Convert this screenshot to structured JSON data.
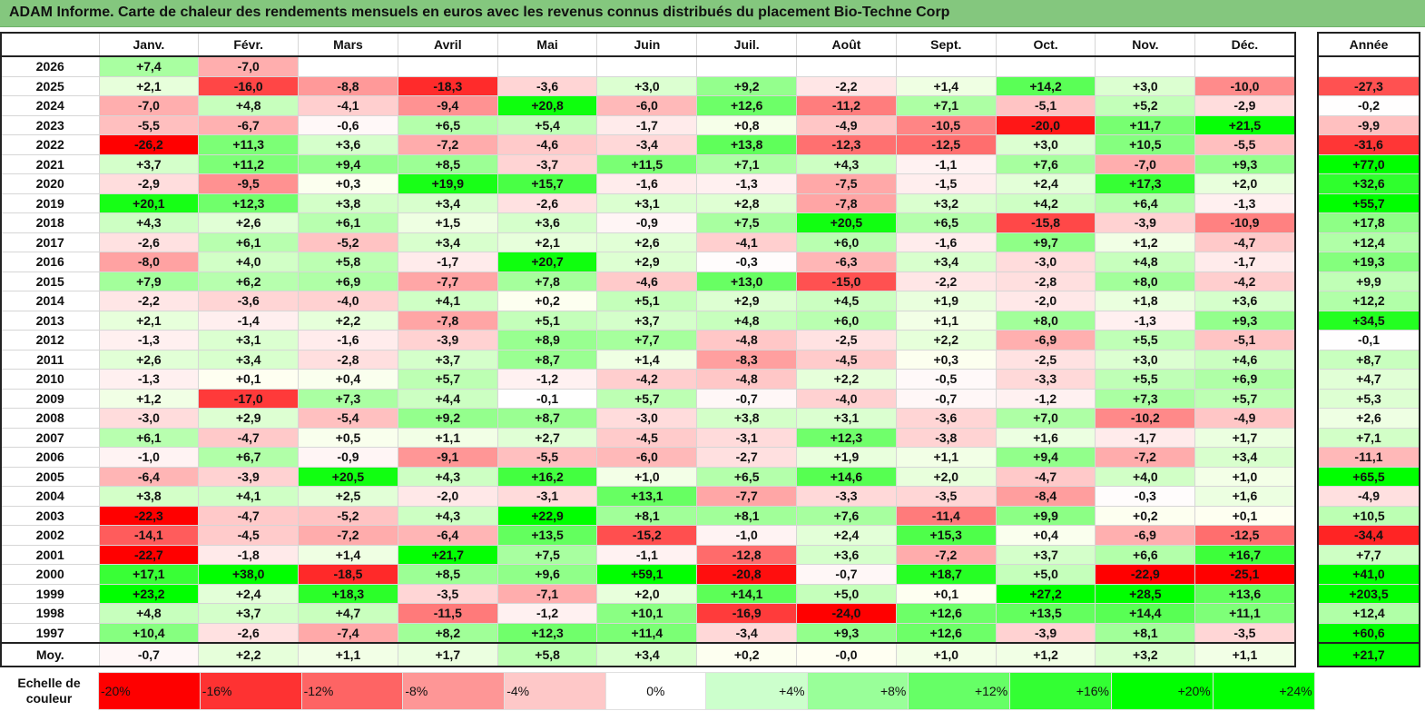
{
  "title": "ADAM Informe. Carte de chaleur des rendements mensuels en euros avec les revenus connus distribués du placement Bio-Techne Corp",
  "chart_data": {
    "type": "heatmap",
    "title": "ADAM Informe. Carte de chaleur des rendements mensuels en euros avec les revenus connus distribués du placement Bio-Techne Corp",
    "months": [
      "Janv.",
      "Févr.",
      "Mars",
      "Avril",
      "Mai",
      "Juin",
      "Juil.",
      "Août",
      "Sept.",
      "Oct.",
      "Nov.",
      "Déc."
    ],
    "year_header": "Année",
    "rows": [
      {
        "year": "2026",
        "values": [
          "+7,4",
          "-7,0",
          "",
          "",
          "",
          "",
          "",
          "",
          "",
          "",
          "",
          ""
        ],
        "annual": ""
      },
      {
        "year": "2025",
        "values": [
          "+2,1",
          "-16,0",
          "-8,8",
          "-18,3",
          "-3,6",
          "+3,0",
          "+9,2",
          "-2,2",
          "+1,4",
          "+14,2",
          "+3,0",
          "-10,0"
        ],
        "annual": "-27,3"
      },
      {
        "year": "2024",
        "values": [
          "-7,0",
          "+4,8",
          "-4,1",
          "-9,4",
          "+20,8",
          "-6,0",
          "+12,6",
          "-11,2",
          "+7,1",
          "-5,1",
          "+5,2",
          "-2,9"
        ],
        "annual": "-0,2"
      },
      {
        "year": "2023",
        "values": [
          "-5,5",
          "-6,7",
          "-0,6",
          "+6,5",
          "+5,4",
          "-1,7",
          "+0,8",
          "-4,9",
          "-10,5",
          "-20,0",
          "+11,7",
          "+21,5"
        ],
        "annual": "-9,9"
      },
      {
        "year": "2022",
        "values": [
          "-26,2",
          "+11,3",
          "+3,6",
          "-7,2",
          "-4,6",
          "-3,4",
          "+13,8",
          "-12,3",
          "-12,5",
          "+3,0",
          "+10,5",
          "-5,5"
        ],
        "annual": "-31,6"
      },
      {
        "year": "2021",
        "values": [
          "+3,7",
          "+11,2",
          "+9,4",
          "+8,5",
          "-3,7",
          "+11,5",
          "+7,1",
          "+4,3",
          "-1,1",
          "+7,6",
          "-7,0",
          "+9,3"
        ],
        "annual": "+77,0"
      },
      {
        "year": "2020",
        "values": [
          "-2,9",
          "-9,5",
          "+0,3",
          "+19,9",
          "+15,7",
          "-1,6",
          "-1,3",
          "-7,5",
          "-1,5",
          "+2,4",
          "+17,3",
          "+2,0"
        ],
        "annual": "+32,6"
      },
      {
        "year": "2019",
        "values": [
          "+20,1",
          "+12,3",
          "+3,8",
          "+3,4",
          "-2,6",
          "+3,1",
          "+2,8",
          "-7,8",
          "+3,2",
          "+4,2",
          "+6,4",
          "-1,3"
        ],
        "annual": "+55,7"
      },
      {
        "year": "2018",
        "values": [
          "+4,3",
          "+2,6",
          "+6,1",
          "+1,5",
          "+3,6",
          "-0,9",
          "+7,5",
          "+20,5",
          "+6,5",
          "-15,8",
          "-3,9",
          "-10,9"
        ],
        "annual": "+17,8"
      },
      {
        "year": "2017",
        "values": [
          "-2,6",
          "+6,1",
          "-5,2",
          "+3,4",
          "+2,1",
          "+2,6",
          "-4,1",
          "+6,0",
          "-1,6",
          "+9,7",
          "+1,2",
          "-4,7"
        ],
        "annual": "+12,4"
      },
      {
        "year": "2016",
        "values": [
          "-8,0",
          "+4,0",
          "+5,8",
          "-1,7",
          "+20,7",
          "+2,9",
          "-0,3",
          "-6,3",
          "+3,4",
          "-3,0",
          "+4,8",
          "-1,7"
        ],
        "annual": "+19,3"
      },
      {
        "year": "2015",
        "values": [
          "+7,9",
          "+6,2",
          "+6,9",
          "-7,7",
          "+7,8",
          "-4,6",
          "+13,0",
          "-15,0",
          "-2,2",
          "-2,8",
          "+8,0",
          "-4,2"
        ],
        "annual": "+9,9"
      },
      {
        "year": "2014",
        "values": [
          "-2,2",
          "-3,6",
          "-4,0",
          "+4,1",
          "+0,2",
          "+5,1",
          "+2,9",
          "+4,5",
          "+1,9",
          "-2,0",
          "+1,8",
          "+3,6"
        ],
        "annual": "+12,2"
      },
      {
        "year": "2013",
        "values": [
          "+2,1",
          "-1,4",
          "+2,2",
          "-7,8",
          "+5,1",
          "+3,7",
          "+4,8",
          "+6,0",
          "+1,1",
          "+8,0",
          "-1,3",
          "+9,3"
        ],
        "annual": "+34,5"
      },
      {
        "year": "2012",
        "values": [
          "-1,3",
          "+3,1",
          "-1,6",
          "-3,9",
          "+8,9",
          "+7,7",
          "-4,8",
          "-2,5",
          "+2,2",
          "-6,9",
          "+5,5",
          "-5,1"
        ],
        "annual": "-0,1"
      },
      {
        "year": "2011",
        "values": [
          "+2,6",
          "+3,4",
          "-2,8",
          "+3,7",
          "+8,7",
          "+1,4",
          "-8,3",
          "-4,5",
          "+0,3",
          "-2,5",
          "+3,0",
          "+4,6"
        ],
        "annual": "+8,7"
      },
      {
        "year": "2010",
        "values": [
          "-1,3",
          "+0,1",
          "+0,4",
          "+5,7",
          "-1,2",
          "-4,2",
          "-4,8",
          "+2,2",
          "-0,5",
          "-3,3",
          "+5,5",
          "+6,9"
        ],
        "annual": "+4,7"
      },
      {
        "year": "2009",
        "values": [
          "+1,2",
          "-17,0",
          "+7,3",
          "+4,4",
          "-0,1",
          "+5,7",
          "-0,7",
          "-4,0",
          "-0,7",
          "-1,2",
          "+7,3",
          "+5,7"
        ],
        "annual": "+5,3"
      },
      {
        "year": "2008",
        "values": [
          "-3,0",
          "+2,9",
          "-5,4",
          "+9,2",
          "+8,7",
          "-3,0",
          "+3,8",
          "+3,1",
          "-3,6",
          "+7,0",
          "-10,2",
          "-4,9"
        ],
        "annual": "+2,6"
      },
      {
        "year": "2007",
        "values": [
          "+6,1",
          "-4,7",
          "+0,5",
          "+1,1",
          "+2,7",
          "-4,5",
          "-3,1",
          "+12,3",
          "-3,8",
          "+1,6",
          "-1,7",
          "+1,7"
        ],
        "annual": "+7,1"
      },
      {
        "year": "2006",
        "values": [
          "-1,0",
          "+6,7",
          "-0,9",
          "-9,1",
          "-5,5",
          "-6,0",
          "-2,7",
          "+1,9",
          "+1,1",
          "+9,4",
          "-7,2",
          "+3,4"
        ],
        "annual": "-11,1"
      },
      {
        "year": "2005",
        "values": [
          "-6,4",
          "-3,9",
          "+20,5",
          "+4,3",
          "+16,2",
          "+1,0",
          "+6,5",
          "+14,6",
          "+2,0",
          "-4,7",
          "+4,0",
          "+1,0"
        ],
        "annual": "+65,5"
      },
      {
        "year": "2004",
        "values": [
          "+3,8",
          "+4,1",
          "+2,5",
          "-2,0",
          "-3,1",
          "+13,1",
          "-7,7",
          "-3,3",
          "-3,5",
          "-8,4",
          "-0,3",
          "+1,6"
        ],
        "annual": "-4,9"
      },
      {
        "year": "2003",
        "values": [
          "-22,3",
          "-4,7",
          "-5,2",
          "+4,3",
          "+22,9",
          "+8,1",
          "+8,1",
          "+7,6",
          "-11,4",
          "+9,9",
          "+0,2",
          "+0,1"
        ],
        "annual": "+10,5"
      },
      {
        "year": "2002",
        "values": [
          "-14,1",
          "-4,5",
          "-7,2",
          "-6,4",
          "+13,5",
          "-15,2",
          "-1,0",
          "+2,4",
          "+15,3",
          "+0,4",
          "-6,9",
          "-12,5"
        ],
        "annual": "-34,4"
      },
      {
        "year": "2001",
        "values": [
          "-22,7",
          "-1,8",
          "+1,4",
          "+21,7",
          "+7,5",
          "-1,1",
          "-12,8",
          "+3,6",
          "-7,2",
          "+3,7",
          "+6,6",
          "+16,7"
        ],
        "annual": "+7,7"
      },
      {
        "year": "2000",
        "values": [
          "+17,1",
          "+38,0",
          "-18,5",
          "+8,5",
          "+9,6",
          "+59,1",
          "-20,8",
          "-0,7",
          "+18,7",
          "+5,0",
          "-22,9",
          "-25,1"
        ],
        "annual": "+41,0"
      },
      {
        "year": "1999",
        "values": [
          "+23,2",
          "+2,4",
          "+18,3",
          "-3,5",
          "-7,1",
          "+2,0",
          "+14,1",
          "+5,0",
          "+0,1",
          "+27,2",
          "+28,5",
          "+13,6"
        ],
        "annual": "+203,5"
      },
      {
        "year": "1998",
        "values": [
          "+4,8",
          "+3,7",
          "+4,7",
          "-11,5",
          "-1,2",
          "+10,1",
          "-16,9",
          "-24,0",
          "+12,6",
          "+13,5",
          "+14,4",
          "+11,1"
        ],
        "annual": "+12,4"
      },
      {
        "year": "1997",
        "values": [
          "+10,4",
          "-2,6",
          "-7,4",
          "+8,2",
          "+12,3",
          "+11,4",
          "-3,4",
          "+9,3",
          "+12,6",
          "-3,9",
          "+8,1",
          "-3,5"
        ],
        "annual": "+60,6"
      }
    ],
    "average": {
      "label": "Moy.",
      "values": [
        "-0,7",
        "+2,2",
        "+1,1",
        "+1,7",
        "+5,8",
        "+3,4",
        "+0,2",
        "-0,0",
        "+1,0",
        "+1,2",
        "+3,2",
        "+1,1"
      ],
      "annual": "+21,7"
    },
    "color_scale": {
      "label": "Echelle de couleur",
      "steps": [
        "-20%",
        "-16%",
        "-12%",
        "-8%",
        "-4%",
        "0%",
        "+4%",
        "+8%",
        "+12%",
        "+16%",
        "+20%",
        "+24%"
      ],
      "colors": [
        "#fe0000",
        "#fe3232",
        "#fe6464",
        "#fe9696",
        "#fec8c8",
        "#ffffff",
        "#ccffcc",
        "#99ff99",
        "#66ff66",
        "#33ff33",
        "#00ff00",
        "#00ff00"
      ]
    }
  }
}
